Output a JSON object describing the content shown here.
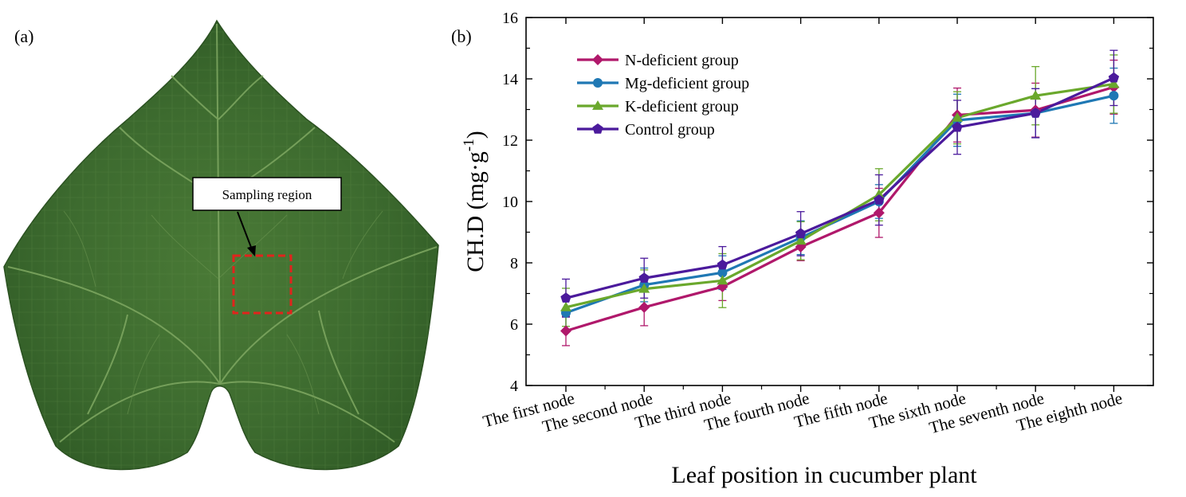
{
  "panel_a": {
    "label": "(a)",
    "annotation": "Sampling region",
    "colors": {
      "leaf_dark": "#2f5a25",
      "leaf_mid": "#3d6b2f",
      "leaf_light": "#4f7d3a",
      "vein": "#6f9a55",
      "box": "#e0241c"
    }
  },
  "panel_b": {
    "label": "(b)"
  },
  "chart_data": {
    "type": "line",
    "title": "",
    "xlabel": "Leaf position in cucumber plant",
    "ylabel_main": "CH.D (mg·g",
    "ylabel_sup": "-1",
    "ylabel_end": ")",
    "ylim": [
      4,
      16
    ],
    "yticks": [
      4,
      6,
      8,
      10,
      12,
      14,
      16
    ],
    "categories": [
      "The first node",
      "The second node",
      "The third node",
      "The fourth node",
      "The fifth node",
      "The sixth node",
      "The seventh node",
      "The eighth node"
    ],
    "grid": false,
    "legend_position": "top-left",
    "series": [
      {
        "name": "N-deficient group",
        "color": "#b0186b",
        "marker": "diamond",
        "values": [
          5.78,
          6.55,
          7.22,
          8.52,
          9.63,
          12.82,
          12.98,
          13.73
        ],
        "errors": [
          0.48,
          0.6,
          0.45,
          0.45,
          0.8,
          0.88,
          0.88,
          0.88
        ]
      },
      {
        "name": "Mg-deficient group",
        "color": "#1f78b4",
        "marker": "circle",
        "values": [
          6.37,
          7.28,
          7.68,
          8.82,
          10.0,
          12.65,
          12.88,
          13.45
        ],
        "errors": [
          0.55,
          0.55,
          0.55,
          0.55,
          0.55,
          0.85,
          0.8,
          0.9
        ]
      },
      {
        "name": "K-deficient group",
        "color": "#6aa82c",
        "marker": "triangle",
        "values": [
          6.55,
          7.15,
          7.42,
          8.72,
          10.22,
          12.73,
          13.45,
          13.83
        ],
        "errors": [
          0.62,
          0.62,
          0.88,
          0.62,
          0.85,
          0.85,
          0.95,
          0.95
        ]
      },
      {
        "name": "Control group",
        "color": "#4b1a9c",
        "marker": "pentagon",
        "values": [
          6.85,
          7.5,
          7.93,
          8.95,
          10.05,
          12.42,
          12.88,
          14.03
        ],
        "errors": [
          0.62,
          0.65,
          0.6,
          0.72,
          0.82,
          0.88,
          0.8,
          0.9
        ]
      }
    ]
  }
}
